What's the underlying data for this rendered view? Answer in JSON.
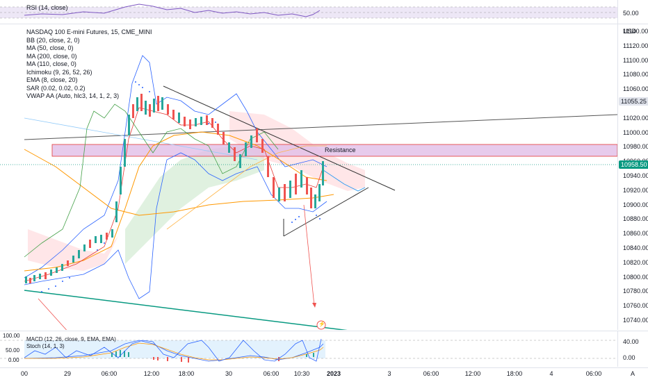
{
  "rsi": {
    "legend": "RSI (14, close)",
    "level_label": "50.00"
  },
  "main": {
    "symbol_title": "NASDAQ 100 E-mini Futures, 15, CME_MINI",
    "indicators": [
      "BB (20, close, 2, 0)",
      "MA (50, close, 0)",
      "MA (200, close, 0)",
      "MA (110, close, 0)",
      "Ichimoku (9, 26, 52, 26)",
      "EMA (8, close, 20)",
      "SAR (0.02, 0.02, 0.2)",
      "VWAP AA (Auto, hlc3, 14, 1, 2, 3)"
    ],
    "currency": "USD",
    "price_ticks": [
      "11140.00",
      "11120.00",
      "11100.00",
      "11080.00",
      "11060.00",
      "11040.00",
      "11020.00",
      "11000.00",
      "10980.00",
      "10960.00",
      "10940.00",
      "10920.00",
      "10900.00",
      "10880.00",
      "10860.00",
      "10840.00",
      "10820.00",
      "10800.00",
      "10780.00",
      "10760.00",
      "10740.00"
    ],
    "resistance_label": "Resistance",
    "last_price_tag": "10958.50",
    "level_tag": "11055.25",
    "alert_icon": "lightning-icon"
  },
  "lower": {
    "legend_macd": "MACD (12, 26, close, 9, EMA, EMA)",
    "legend_stoch": "Stoch (14, 1, 3)",
    "left_ticks": [
      "100.00",
      "50.00",
      "0.00"
    ],
    "right_ticks": [
      "40.00",
      "0.00"
    ]
  },
  "time_axis": {
    "labels": [
      {
        "text": "00",
        "bold": false
      },
      {
        "text": "29",
        "bold": false
      },
      {
        "text": "06:00",
        "bold": false
      },
      {
        "text": "12:00",
        "bold": false
      },
      {
        "text": "18:00",
        "bold": false
      },
      {
        "text": "30",
        "bold": false
      },
      {
        "text": "06:00",
        "bold": false
      },
      {
        "text": "10:30",
        "bold": false
      },
      {
        "text": "2023",
        "bold": true
      },
      {
        "text": "3",
        "bold": false
      },
      {
        "text": "06:00",
        "bold": false
      },
      {
        "text": "12:00",
        "bold": false
      },
      {
        "text": "18:00",
        "bold": false
      },
      {
        "text": "4",
        "bold": false
      },
      {
        "text": "06:00",
        "bold": false
      }
    ],
    "auto_button": "A"
  },
  "colors": {
    "up": "#26a69a",
    "down": "#ef5350",
    "resistance_fill": "#e1bee7",
    "resistance_border": "#e53935",
    "last_price": "#089981",
    "level_tag_bg": "#e0e3eb",
    "trend_green": "#089981",
    "rsi_fill": "#ede7f6"
  }
}
